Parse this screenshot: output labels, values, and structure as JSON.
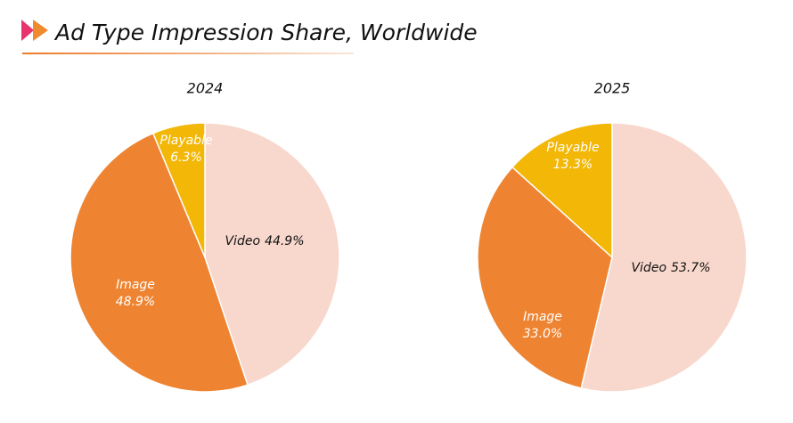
{
  "title": "Ad Type Impression Share, Worldwide",
  "chart_data": [
    {
      "type": "pie",
      "title": "2024",
      "categories": [
        "Video",
        "Image",
        "Playable"
      ],
      "values": [
        44.9,
        48.9,
        6.3
      ],
      "value_labels": [
        "44.9%",
        "48.9%",
        "6.3%"
      ],
      "colors": [
        "#f8d8cd",
        "#ee8431",
        "#f2b707"
      ]
    },
    {
      "type": "pie",
      "title": "2025",
      "categories": [
        "Video",
        "Image",
        "Playable"
      ],
      "values": [
        53.7,
        33.0,
        13.3
      ],
      "value_labels": [
        "53.7%",
        "33.0%",
        "13.3%"
      ],
      "colors": [
        "#f8d8cd",
        "#ee8431",
        "#f2b707"
      ]
    }
  ]
}
